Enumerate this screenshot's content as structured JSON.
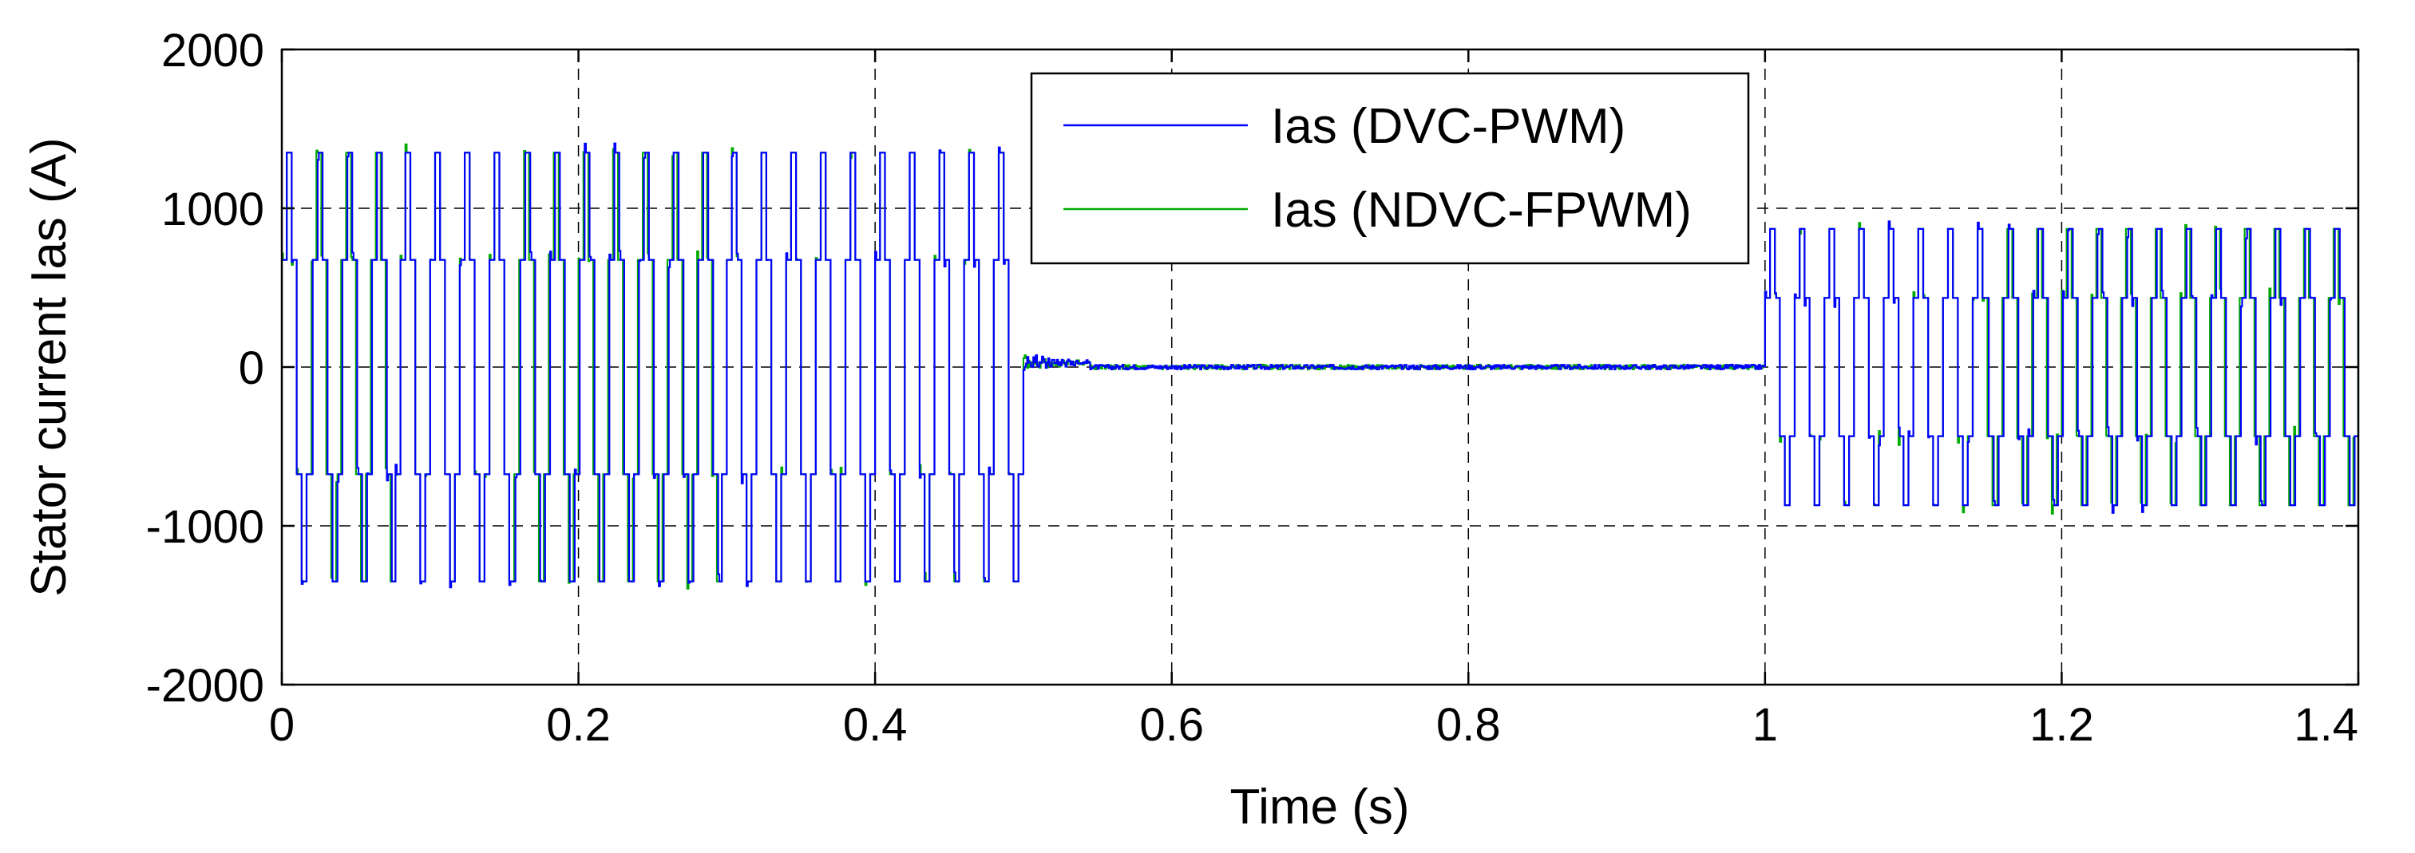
{
  "chart_data": {
    "type": "line",
    "title": "",
    "xlabel": "Time (s)",
    "ylabel": "Stator current Ias (A)",
    "xlim": [
      0,
      1.4
    ],
    "ylim": [
      -2000,
      2000
    ],
    "x_ticks": [
      0,
      0.2,
      0.4,
      0.6,
      0.8,
      1,
      1.2,
      1.4
    ],
    "x_tick_labels": [
      "0",
      "0.2",
      "0.4",
      "0.6",
      "0.8",
      "1",
      "1.2",
      "1.4"
    ],
    "y_ticks": [
      -2000,
      -1000,
      0,
      1000,
      2000
    ],
    "y_tick_labels": [
      "-2000",
      "-1000",
      "0",
      "1000",
      "2000"
    ],
    "grid": true,
    "legend_position": "top-center",
    "frequency_hz": 50,
    "series": [
      {
        "name": "Ias (DVC-PWM)",
        "color": "#0000ff",
        "segments": [
          {
            "t_start": 0.0,
            "t_end": 0.5,
            "amplitude": 1350
          },
          {
            "t_start": 0.5,
            "t_end": 1.0,
            "amplitude": 0
          },
          {
            "t_start": 1.0,
            "t_end": 1.4,
            "amplitude": 870
          }
        ]
      },
      {
        "name": "Ias (NDVC-FPWM)",
        "color": "#00aa00",
        "segments": [
          {
            "t_start": 0.0,
            "t_end": 0.5,
            "amplitude": 1350
          },
          {
            "t_start": 0.5,
            "t_end": 1.0,
            "amplitude": 0
          },
          {
            "t_start": 1.0,
            "t_end": 1.4,
            "amplitude": 870
          }
        ]
      }
    ]
  }
}
